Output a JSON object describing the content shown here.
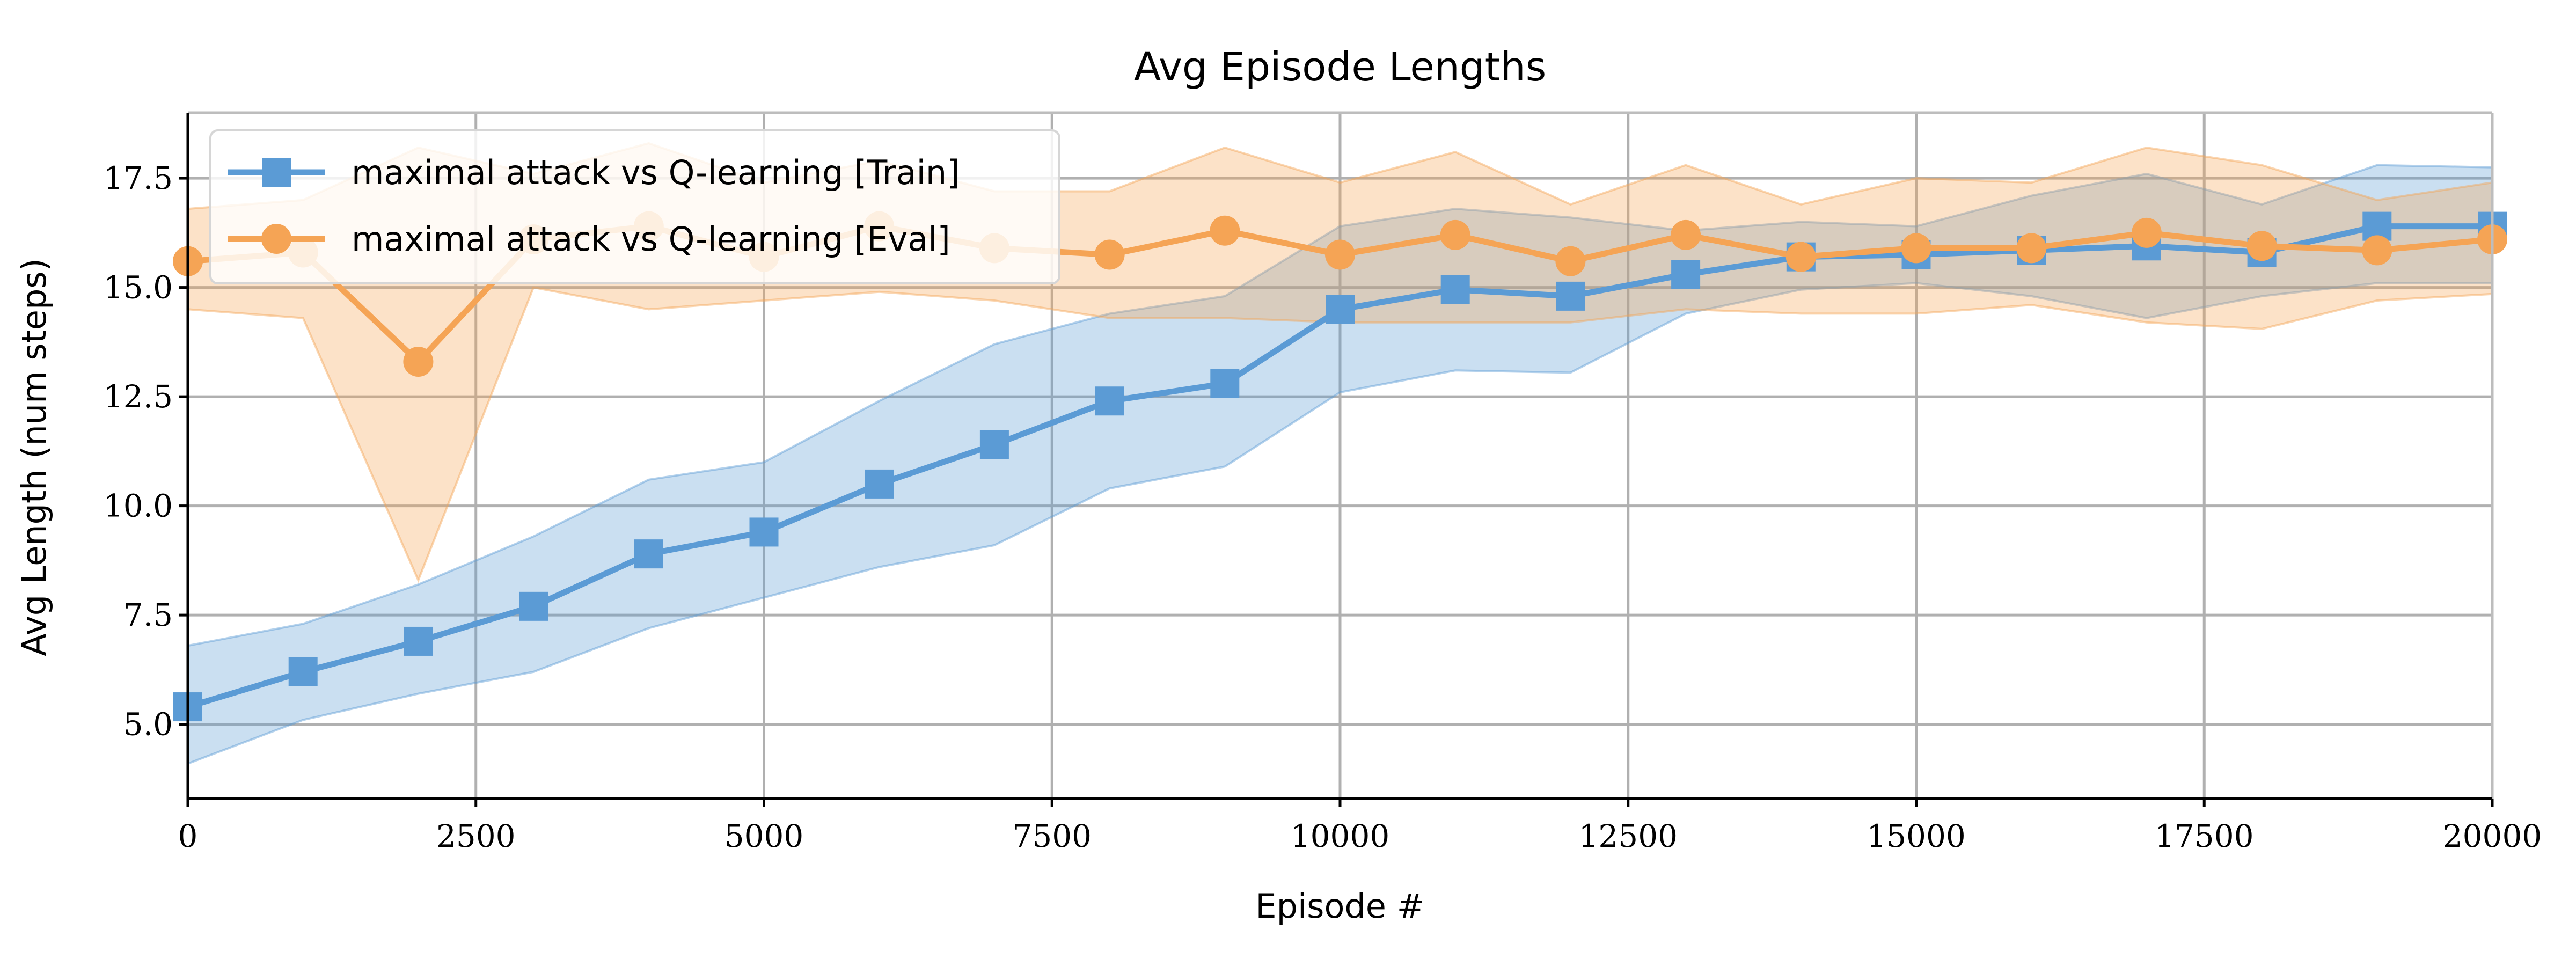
{
  "chart_data": {
    "type": "line",
    "title": "Avg Episode Lengths",
    "xlabel": "Episode #",
    "ylabel": "Avg Length (num steps)",
    "xlim": [
      0,
      20000
    ],
    "ylim": [
      3.3,
      19.0
    ],
    "xticks": [
      0,
      2500,
      5000,
      7500,
      10000,
      12500,
      15000,
      17500,
      20000
    ],
    "xtick_labels": [
      "0",
      "2500",
      "5000",
      "7500",
      "10000",
      "12500",
      "15000",
      "17500",
      "20000"
    ],
    "yticks": [
      5.0,
      7.5,
      10.0,
      12.5,
      15.0,
      17.5
    ],
    "ytick_labels": [
      "5.0",
      "7.5",
      "10.0",
      "12.5",
      "15.0",
      "17.5"
    ],
    "grid": true,
    "legend_position": "top-left",
    "x": [
      0,
      1000,
      2000,
      3000,
      4000,
      5000,
      6000,
      7000,
      8000,
      9000,
      10000,
      11000,
      12000,
      13000,
      14000,
      15000,
      16000,
      17000,
      18000,
      19000,
      20000
    ],
    "series": [
      {
        "name": "maximal attack vs Q-learning [Train]",
        "color": "#5b9bd5",
        "marker": "square",
        "values": [
          5.4,
          6.2,
          6.9,
          7.7,
          8.9,
          9.4,
          10.5,
          11.4,
          12.4,
          12.8,
          14.5,
          14.95,
          14.8,
          15.3,
          15.7,
          15.75,
          15.85,
          15.95,
          15.8,
          16.4,
          16.4
        ],
        "band_upper": [
          6.8,
          7.3,
          8.2,
          9.3,
          10.6,
          11.0,
          12.4,
          13.7,
          14.4,
          14.8,
          16.4,
          16.8,
          16.6,
          16.3,
          16.5,
          16.4,
          17.1,
          17.6,
          16.9,
          17.8,
          17.75
        ],
        "band_lower": [
          4.1,
          5.1,
          5.7,
          6.2,
          7.2,
          7.9,
          8.6,
          9.1,
          10.4,
          10.9,
          12.6,
          13.1,
          13.05,
          14.4,
          14.95,
          15.1,
          14.8,
          14.3,
          14.8,
          15.1,
          15.1
        ]
      },
      {
        "name": "maximal attack vs Q-learning [Eval]",
        "color": "#f5a455",
        "marker": "circle",
        "values": [
          15.6,
          15.8,
          13.3,
          16.1,
          16.4,
          15.7,
          16.4,
          15.9,
          15.75,
          16.3,
          15.75,
          16.2,
          15.6,
          16.2,
          15.7,
          15.9,
          15.9,
          16.25,
          15.95,
          15.85,
          16.1
        ],
        "band_upper": [
          16.8,
          17.0,
          18.2,
          17.6,
          18.3,
          17.4,
          17.9,
          17.2,
          17.2,
          18.2,
          17.4,
          18.1,
          16.9,
          17.8,
          16.9,
          17.5,
          17.4,
          18.2,
          17.8,
          17.0,
          17.4
        ],
        "band_lower": [
          14.5,
          14.3,
          8.3,
          15.0,
          14.5,
          14.7,
          14.9,
          14.7,
          14.3,
          14.3,
          14.2,
          14.2,
          14.2,
          14.5,
          14.4,
          14.4,
          14.6,
          14.2,
          14.05,
          14.7,
          14.85
        ]
      }
    ]
  }
}
